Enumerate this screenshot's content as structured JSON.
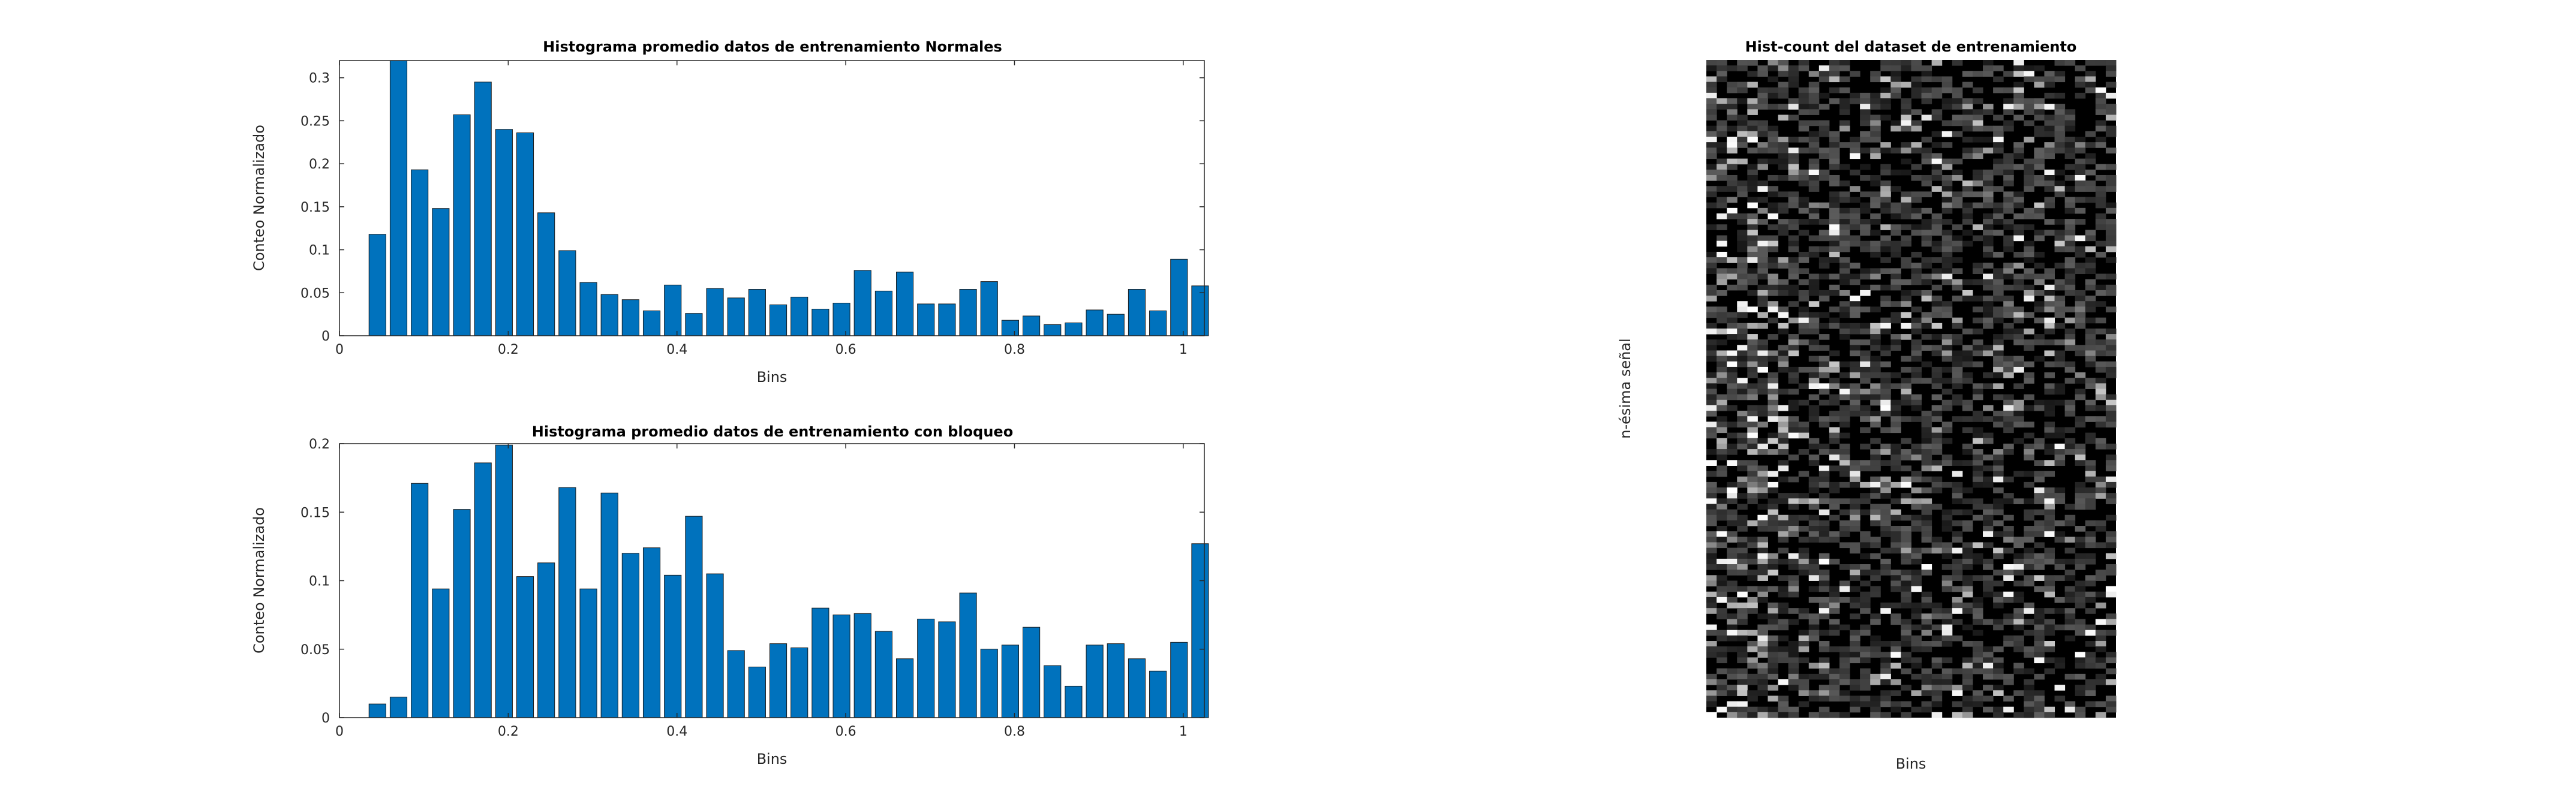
{
  "chart_data": [
    {
      "type": "bar",
      "title": "Histograma promedio datos de entrenamiento Normales",
      "xlabel": "Bins",
      "ylabel": "Conteo Normalizado",
      "xlim": [
        0,
        1.025
      ],
      "ylim": [
        0,
        0.32
      ],
      "xticks": [
        "0",
        "0.2",
        "0.4",
        "0.6",
        "0.8",
        "1"
      ],
      "yticks": [
        "0",
        "0.05",
        "0.1",
        "0.15",
        "0.2",
        "0.25",
        "0.3"
      ],
      "bar_color": "#0072BD",
      "x": [
        0.045,
        0.07,
        0.095,
        0.12,
        0.145,
        0.17,
        0.195,
        0.22,
        0.245,
        0.27,
        0.295,
        0.32,
        0.345,
        0.37,
        0.395,
        0.42,
        0.445,
        0.47,
        0.495,
        0.52,
        0.545,
        0.57,
        0.595,
        0.62,
        0.645,
        0.67,
        0.695,
        0.72,
        0.745,
        0.77,
        0.795,
        0.82,
        0.845,
        0.87,
        0.895,
        0.92,
        0.945,
        0.97,
        0.995,
        1.02
      ],
      "values": [
        0.118,
        0.32,
        0.193,
        0.148,
        0.257,
        0.295,
        0.24,
        0.236,
        0.143,
        0.099,
        0.062,
        0.048,
        0.042,
        0.029,
        0.059,
        0.026,
        0.055,
        0.044,
        0.054,
        0.036,
        0.045,
        0.031,
        0.038,
        0.076,
        0.052,
        0.074,
        0.037,
        0.037,
        0.054,
        0.063,
        0.018,
        0.023,
        0.013,
        0.015,
        0.03,
        0.025,
        0.054,
        0.029,
        0.089,
        0.058
      ]
    },
    {
      "type": "bar",
      "title": "Histograma promedio datos de entrenamiento con bloqueo",
      "xlabel": "Bins",
      "ylabel": "Conteo Normalizado",
      "xlim": [
        0,
        1.025
      ],
      "ylim": [
        0,
        0.2
      ],
      "xticks": [
        "0",
        "0.2",
        "0.4",
        "0.6",
        "0.8",
        "1"
      ],
      "yticks": [
        "0",
        "0.05",
        "0.1",
        "0.15",
        "0.2"
      ],
      "bar_color": "#0072BD",
      "x": [
        0.045,
        0.07,
        0.095,
        0.12,
        0.145,
        0.17,
        0.195,
        0.22,
        0.245,
        0.27,
        0.295,
        0.32,
        0.345,
        0.37,
        0.395,
        0.42,
        0.445,
        0.47,
        0.495,
        0.52,
        0.545,
        0.57,
        0.595,
        0.62,
        0.645,
        0.67,
        0.695,
        0.72,
        0.745,
        0.77,
        0.795,
        0.82,
        0.845,
        0.87,
        0.895,
        0.92,
        0.945,
        0.97,
        0.995,
        1.02
      ],
      "values": [
        0.01,
        0.015,
        0.171,
        0.094,
        0.152,
        0.186,
        0.199,
        0.103,
        0.113,
        0.168,
        0.094,
        0.164,
        0.12,
        0.124,
        0.104,
        0.147,
        0.105,
        0.049,
        0.037,
        0.054,
        0.051,
        0.08,
        0.075,
        0.076,
        0.063,
        0.043,
        0.072,
        0.07,
        0.091,
        0.05,
        0.053,
        0.066,
        0.038,
        0.023,
        0.053,
        0.054,
        0.043,
        0.034,
        0.055,
        0.127
      ]
    },
    {
      "type": "heatmap",
      "title": "Hist-count del dataset de entrenamiento",
      "xlabel": "Bins",
      "ylabel": "n-ésima señal",
      "colormap": "gray",
      "columns": 40,
      "rows": 120,
      "grid": false
    }
  ]
}
